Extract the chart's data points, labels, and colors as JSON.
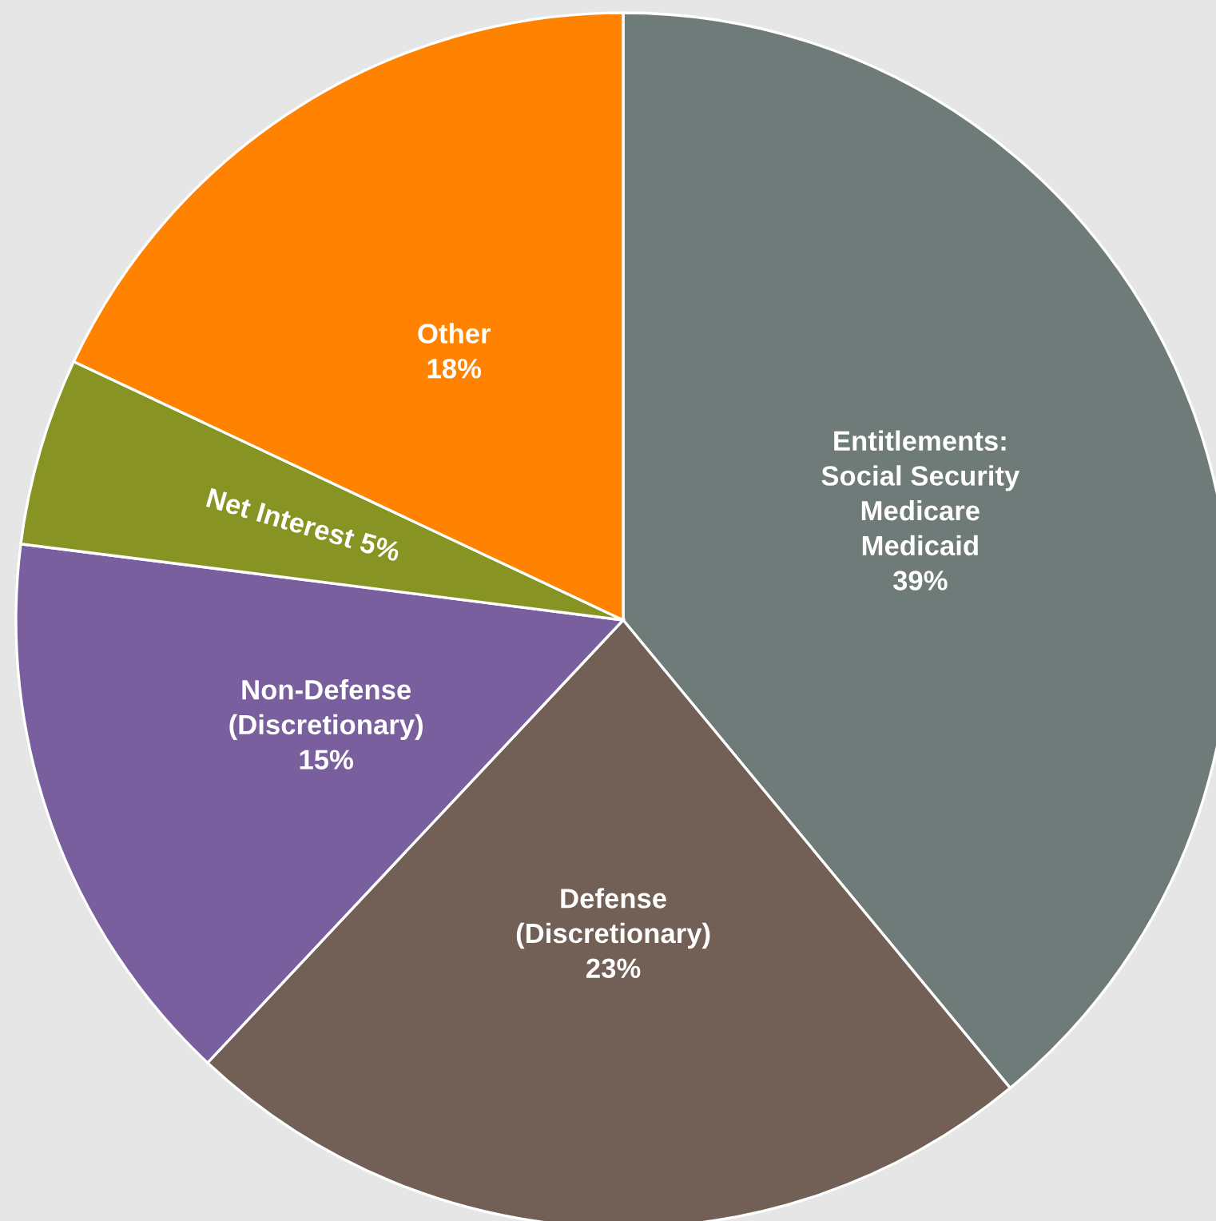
{
  "chart_data": {
    "type": "pie",
    "categories": [
      "Entitlements:\nSocial Security\nMedicare\nMedicaid",
      "Defense\n(Discretionary)",
      "Non-Defense\n(Discretionary)",
      "Net Interest",
      "Other"
    ],
    "values": [
      39,
      23,
      15,
      5,
      18
    ],
    "value_labels": [
      "39%",
      "23%",
      "15%",
      "5%",
      "18%"
    ],
    "colors": [
      "#6f7b78",
      "#725f55",
      "#7a5f9f",
      "#879323",
      "#ff8200"
    ]
  }
}
